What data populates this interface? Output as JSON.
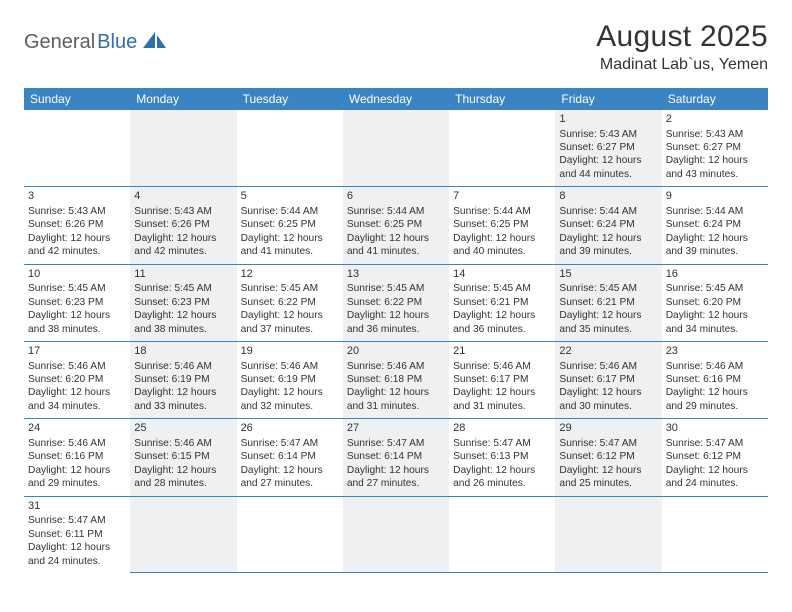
{
  "logo": {
    "text1": "General",
    "text2": "Blue"
  },
  "title": "August 2025",
  "location": "Madinat Lab`us, Yemen",
  "headers": [
    "Sunday",
    "Monday",
    "Tuesday",
    "Wednesday",
    "Thursday",
    "Friday",
    "Saturday"
  ],
  "colors": {
    "header_bg": "#3b84c4",
    "header_fg": "#ffffff",
    "alt_bg": "#eef0f1",
    "border": "#3b84c4",
    "text": "#333333",
    "logo_gray": "#5e5e5e",
    "logo_blue": "#2f6fb0"
  },
  "weeks": [
    [
      null,
      null,
      null,
      null,
      null,
      {
        "n": "1",
        "sr": "5:43 AM",
        "ss": "6:27 PM",
        "dl": "12 hours and 44 minutes."
      },
      {
        "n": "2",
        "sr": "5:43 AM",
        "ss": "6:27 PM",
        "dl": "12 hours and 43 minutes."
      }
    ],
    [
      {
        "n": "3",
        "sr": "5:43 AM",
        "ss": "6:26 PM",
        "dl": "12 hours and 42 minutes."
      },
      {
        "n": "4",
        "sr": "5:43 AM",
        "ss": "6:26 PM",
        "dl": "12 hours and 42 minutes."
      },
      {
        "n": "5",
        "sr": "5:44 AM",
        "ss": "6:25 PM",
        "dl": "12 hours and 41 minutes."
      },
      {
        "n": "6",
        "sr": "5:44 AM",
        "ss": "6:25 PM",
        "dl": "12 hours and 41 minutes."
      },
      {
        "n": "7",
        "sr": "5:44 AM",
        "ss": "6:25 PM",
        "dl": "12 hours and 40 minutes."
      },
      {
        "n": "8",
        "sr": "5:44 AM",
        "ss": "6:24 PM",
        "dl": "12 hours and 39 minutes."
      },
      {
        "n": "9",
        "sr": "5:44 AM",
        "ss": "6:24 PM",
        "dl": "12 hours and 39 minutes."
      }
    ],
    [
      {
        "n": "10",
        "sr": "5:45 AM",
        "ss": "6:23 PM",
        "dl": "12 hours and 38 minutes."
      },
      {
        "n": "11",
        "sr": "5:45 AM",
        "ss": "6:23 PM",
        "dl": "12 hours and 38 minutes."
      },
      {
        "n": "12",
        "sr": "5:45 AM",
        "ss": "6:22 PM",
        "dl": "12 hours and 37 minutes."
      },
      {
        "n": "13",
        "sr": "5:45 AM",
        "ss": "6:22 PM",
        "dl": "12 hours and 36 minutes."
      },
      {
        "n": "14",
        "sr": "5:45 AM",
        "ss": "6:21 PM",
        "dl": "12 hours and 36 minutes."
      },
      {
        "n": "15",
        "sr": "5:45 AM",
        "ss": "6:21 PM",
        "dl": "12 hours and 35 minutes."
      },
      {
        "n": "16",
        "sr": "5:45 AM",
        "ss": "6:20 PM",
        "dl": "12 hours and 34 minutes."
      }
    ],
    [
      {
        "n": "17",
        "sr": "5:46 AM",
        "ss": "6:20 PM",
        "dl": "12 hours and 34 minutes."
      },
      {
        "n": "18",
        "sr": "5:46 AM",
        "ss": "6:19 PM",
        "dl": "12 hours and 33 minutes."
      },
      {
        "n": "19",
        "sr": "5:46 AM",
        "ss": "6:19 PM",
        "dl": "12 hours and 32 minutes."
      },
      {
        "n": "20",
        "sr": "5:46 AM",
        "ss": "6:18 PM",
        "dl": "12 hours and 31 minutes."
      },
      {
        "n": "21",
        "sr": "5:46 AM",
        "ss": "6:17 PM",
        "dl": "12 hours and 31 minutes."
      },
      {
        "n": "22",
        "sr": "5:46 AM",
        "ss": "6:17 PM",
        "dl": "12 hours and 30 minutes."
      },
      {
        "n": "23",
        "sr": "5:46 AM",
        "ss": "6:16 PM",
        "dl": "12 hours and 29 minutes."
      }
    ],
    [
      {
        "n": "24",
        "sr": "5:46 AM",
        "ss": "6:16 PM",
        "dl": "12 hours and 29 minutes."
      },
      {
        "n": "25",
        "sr": "5:46 AM",
        "ss": "6:15 PM",
        "dl": "12 hours and 28 minutes."
      },
      {
        "n": "26",
        "sr": "5:47 AM",
        "ss": "6:14 PM",
        "dl": "12 hours and 27 minutes."
      },
      {
        "n": "27",
        "sr": "5:47 AM",
        "ss": "6:14 PM",
        "dl": "12 hours and 27 minutes."
      },
      {
        "n": "28",
        "sr": "5:47 AM",
        "ss": "6:13 PM",
        "dl": "12 hours and 26 minutes."
      },
      {
        "n": "29",
        "sr": "5:47 AM",
        "ss": "6:12 PM",
        "dl": "12 hours and 25 minutes."
      },
      {
        "n": "30",
        "sr": "5:47 AM",
        "ss": "6:12 PM",
        "dl": "12 hours and 24 minutes."
      }
    ],
    [
      {
        "n": "31",
        "sr": "5:47 AM",
        "ss": "6:11 PM",
        "dl": "12 hours and 24 minutes."
      },
      null,
      null,
      null,
      null,
      null,
      null
    ]
  ],
  "labels": {
    "sunrise": "Sunrise: ",
    "sunset": "Sunset: ",
    "daylight": "Daylight: "
  }
}
